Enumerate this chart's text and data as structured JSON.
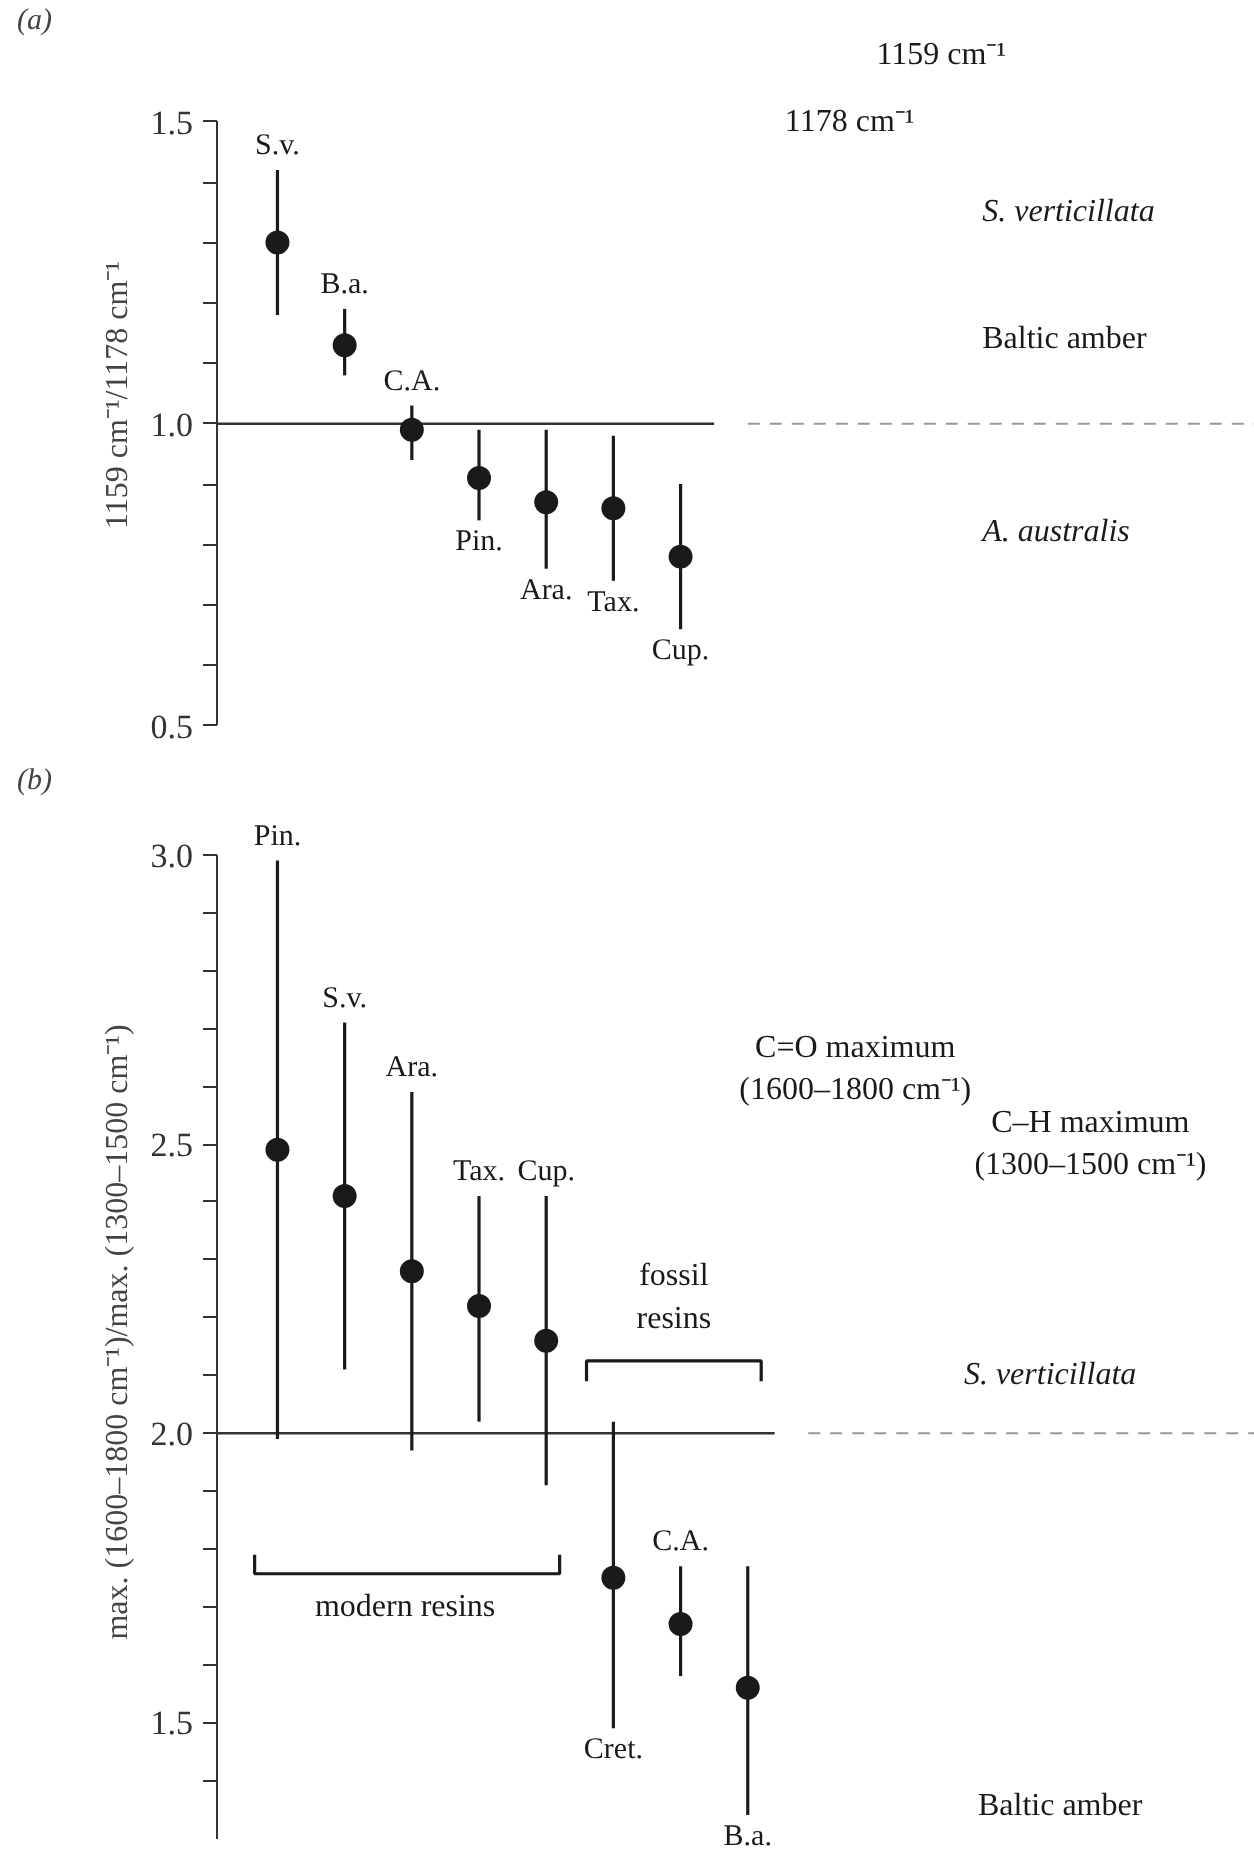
{
  "chart_data": [
    {
      "type": "scatter",
      "title": "(a)",
      "ylabel": "1159 cm⁻¹/1178 cm⁻¹",
      "categories": [
        "S.v.",
        "B.a.",
        "C.A.",
        "Pin.",
        "Ara.",
        "Tax.",
        "Cup."
      ],
      "values": [
        1.3,
        1.13,
        0.99,
        0.91,
        0.87,
        0.86,
        0.78
      ],
      "errors": [
        [
          1.18,
          1.42
        ],
        [
          1.08,
          1.19
        ],
        [
          0.94,
          1.03
        ],
        [
          0.84,
          0.99
        ],
        [
          0.76,
          0.99
        ],
        [
          0.74,
          0.98
        ],
        [
          0.66,
          0.9
        ]
      ],
      "color": "#1a1a1a",
      "marker": "circle",
      "grid": false,
      "tick_labels": "y",
      "ylim": [
        0.5,
        1.5
      ],
      "yticks": [
        {
          "value": 0.5,
          "label": "0.5"
        },
        {
          "value": 0.6,
          "label": null
        },
        {
          "value": 0.7,
          "label": null
        },
        {
          "value": 0.8,
          "label": null
        },
        {
          "value": 0.9,
          "label": null
        },
        {
          "value": 1.0,
          "label": "1.0"
        },
        {
          "value": 1.1,
          "label": null
        },
        {
          "value": 1.2,
          "label": null
        },
        {
          "value": 1.3,
          "label": null
        },
        {
          "value": 1.4,
          "label": null
        },
        {
          "value": 1.5,
          "label": "1.5"
        }
      ],
      "ref_lines": [
        {
          "axis": "y",
          "value": 1.0
        }
      ],
      "annotations": [
        "1159 cm⁻¹",
        "1178 cm⁻¹",
        "S. verticillata",
        "Baltic amber",
        "A. australis"
      ]
    },
    {
      "type": "scatter",
      "title": "(b)",
      "ylabel": "max. (1600–1800 cm⁻¹)/max. (1300–1500 cm⁻¹)",
      "categories": [
        "Pin.",
        "S.v.",
        "Ara.",
        "Tax.",
        "Cup.",
        "Cret.",
        "C.A.",
        "B.a."
      ],
      "values": [
        2.49,
        2.41,
        2.28,
        2.22,
        2.16,
        1.75,
        1.67,
        1.56
      ],
      "errors": [
        [
          1.99,
          2.99
        ],
        [
          2.11,
          2.71
        ],
        [
          1.97,
          2.59
        ],
        [
          2.02,
          2.41
        ],
        [
          1.91,
          2.41
        ],
        [
          1.49,
          2.02
        ],
        [
          1.58,
          1.77
        ],
        [
          1.34,
          1.77
        ]
      ],
      "color": "#1a1a1a",
      "marker": "circle",
      "grid": false,
      "tick_labels": "y",
      "ylim": [
        1.3,
        3.0
      ],
      "yticks": [
        {
          "value": 1.4,
          "label": null
        },
        {
          "value": 1.5,
          "label": "1.5"
        },
        {
          "value": 1.6,
          "label": null
        },
        {
          "value": 1.7,
          "label": null
        },
        {
          "value": 1.8,
          "label": null
        },
        {
          "value": 1.9,
          "label": null
        },
        {
          "value": 2.0,
          "label": "2.0"
        },
        {
          "value": 2.1,
          "label": null
        },
        {
          "value": 2.2,
          "label": null
        },
        {
          "value": 2.3,
          "label": null
        },
        {
          "value": 2.4,
          "label": null
        },
        {
          "value": 2.5,
          "label": "2.5"
        },
        {
          "value": 2.6,
          "label": null
        },
        {
          "value": 2.7,
          "label": null
        },
        {
          "value": 2.8,
          "label": null
        },
        {
          "value": 2.9,
          "label": null
        },
        {
          "value": 3.0,
          "label": "3.0"
        }
      ],
      "ref_lines": [
        {
          "axis": "y",
          "value": 2.0
        }
      ],
      "annotations": [
        "C=O maximum\n(1600–1800 cm⁻¹)",
        "C–H maximum\n(1300–1500 cm⁻¹)",
        "S. verticillata",
        "Baltic amber",
        "fossil\nresins",
        "modern resins"
      ]
    }
  ]
}
